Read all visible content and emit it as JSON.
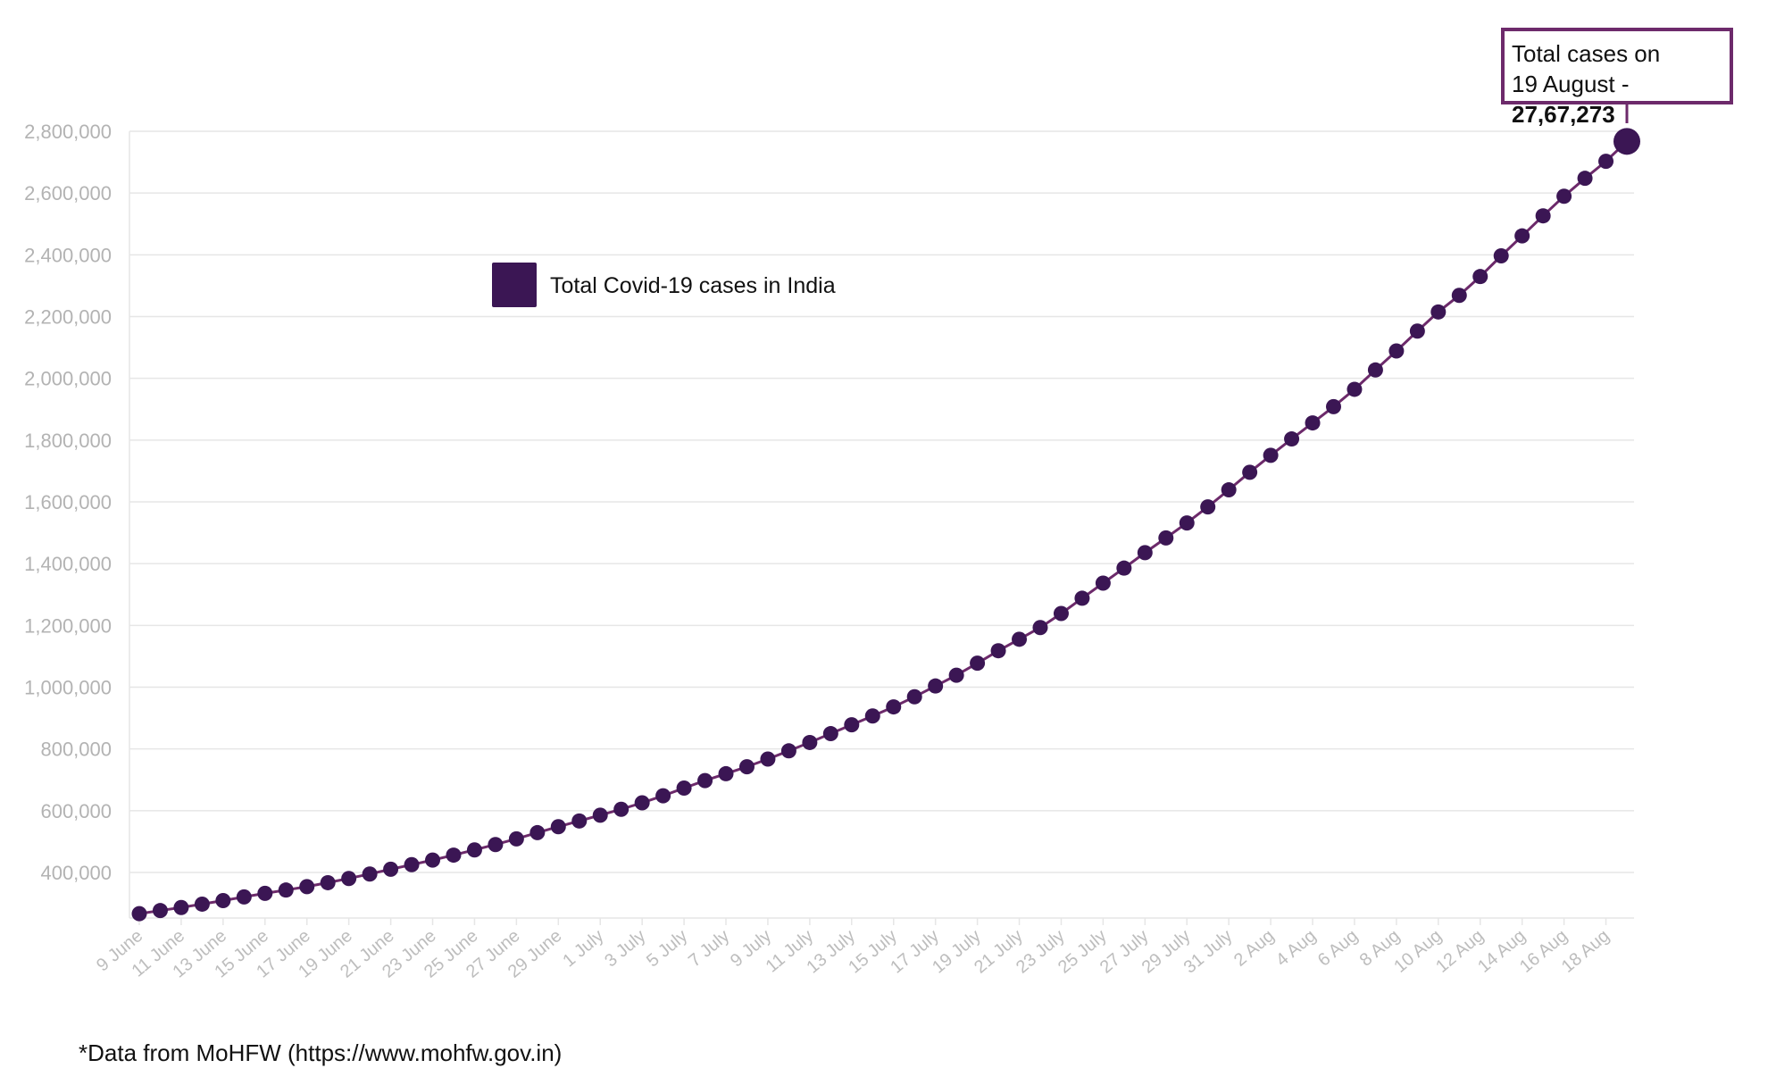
{
  "chart_data": {
    "type": "line",
    "legend": {
      "label": "Total Covid-19 cases in India",
      "placement": "top-left"
    },
    "colors": {
      "series": "#3b1654",
      "line": "#6d2a6b",
      "callout_border": "#6d2a6b",
      "grid": "#e6e6e6",
      "tick_text": "#b3b3b3"
    },
    "grid": true,
    "ylim": [
      250000,
      2800000
    ],
    "yticks": [
      400000,
      600000,
      800000,
      1000000,
      1200000,
      1400000,
      1600000,
      1800000,
      2000000,
      2200000,
      2400000,
      2600000,
      2800000
    ],
    "ytick_labels": [
      "400,000",
      "600,000",
      "800,000",
      "1,000,000",
      "1,200,000",
      "1,400,000",
      "1,600,000",
      "1,800,000",
      "2,000,000",
      "2,200,000",
      "2,400,000",
      "2,600,000",
      "2,800,000"
    ],
    "xtick_labels": [
      "9 June",
      "11 June",
      "13 June",
      "15 June",
      "17 June",
      "19 June",
      "21 June",
      "23 June",
      "25 June",
      "27 June",
      "29 June",
      "1 July",
      "3 July",
      "5 July",
      "7 July",
      "9 July",
      "11 July",
      "13 July",
      "15 July",
      "17 July",
      "19 July",
      "21 July",
      "23 July",
      "25 July",
      "27 July",
      "29 July",
      "31 July",
      "2 Aug",
      "4 Aug",
      "6 Aug",
      "8 Aug",
      "10 Aug",
      "12 Aug",
      "14 Aug",
      "16 Aug",
      "18 Aug"
    ],
    "dates": [
      "9 June",
      "10 June",
      "11 June",
      "12 June",
      "13 June",
      "14 June",
      "15 June",
      "16 June",
      "17 June",
      "18 June",
      "19 June",
      "20 June",
      "21 June",
      "22 June",
      "23 June",
      "24 June",
      "25 June",
      "26 June",
      "27 June",
      "28 June",
      "29 June",
      "30 June",
      "1 July",
      "2 July",
      "3 July",
      "4 July",
      "5 July",
      "6 July",
      "7 July",
      "8 July",
      "9 July",
      "10 July",
      "11 July",
      "12 July",
      "13 July",
      "14 July",
      "15 July",
      "16 July",
      "17 July",
      "18 July",
      "19 July",
      "20 July",
      "21 July",
      "22 July",
      "23 July",
      "24 July",
      "25 July",
      "26 July",
      "27 July",
      "28 July",
      "29 July",
      "30 July",
      "31 July",
      "1 Aug",
      "2 Aug",
      "3 Aug",
      "4 Aug",
      "5 Aug",
      "6 Aug",
      "7 Aug",
      "8 Aug",
      "9 Aug",
      "10 Aug",
      "11 Aug",
      "12 Aug",
      "13 Aug",
      "14 Aug",
      "15 Aug",
      "16 Aug",
      "17 Aug",
      "18 Aug",
      "19 Aug"
    ],
    "values": [
      266600,
      276600,
      286600,
      297500,
      308900,
      320900,
      332400,
      343100,
      354100,
      366900,
      380500,
      395000,
      410500,
      425300,
      440200,
      456200,
      473100,
      490400,
      508900,
      528900,
      548300,
      566800,
      585500,
      604600,
      625500,
      648300,
      673200,
      697400,
      719700,
      742400,
      767300,
      793800,
      820900,
      849500,
      878300,
      906800,
      936200,
      968900,
      1003800,
      1038700,
      1077600,
      1118000,
      1155200,
      1193100,
      1238600,
      1287900,
      1336900,
      1385500,
      1435500,
      1483200,
      1531700,
      1583800,
      1638900,
      1695900,
      1750700,
      1803700,
      1855700,
      1908300,
      1964500,
      2027100,
      2088600,
      2153000,
      2215000,
      2268700,
      2329600,
      2396600,
      2461200,
      2526200,
      2589700,
      2647700,
      2702700,
      2767273
    ],
    "callout": {
      "line1": "Total cases on",
      "line2_prefix": "19 August - ",
      "line2_value": "27,67,273"
    }
  },
  "footer": {
    "source": "*Data from MoHFW (https://www.mohfw.gov.in)"
  }
}
